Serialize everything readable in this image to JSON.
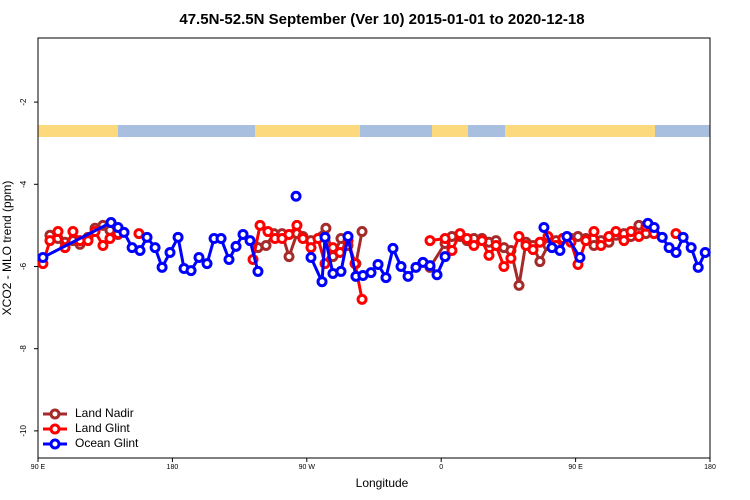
{
  "chart_data": {
    "type": "line",
    "title": "47.5N-52.5N September (Ver 10)   2015-01-01 to 2020-12-18",
    "x_label": "Longitude",
    "y_label": "XCO2 - MLO trend (ppm)",
    "xlim": [
      90,
      540
    ],
    "ylim": [
      -10.66,
      -0.44
    ],
    "xticks": [
      {
        "value": 90,
        "label": "90 E"
      },
      {
        "value": 180,
        "label": "180"
      },
      {
        "value": 270,
        "label": "90 W"
      },
      {
        "value": 360,
        "label": "0"
      },
      {
        "value": 450,
        "label": "90 E"
      },
      {
        "value": 540,
        "label": "180"
      }
    ],
    "yticks": [
      -2,
      -4,
      -6,
      -8,
      -10
    ],
    "legend": "bottom-left",
    "series": [
      {
        "name": "Land Nadir",
        "color": "#a52a2a",
        "x": [
          98.0,
          103.4,
          108.1,
          113.4,
          118.1,
          123.5,
          128.2,
          133.5,
          138.2,
          143.6,
          null,
          237.3,
          242.7,
          248.0,
          253.4,
          258.1,
          263.4,
          267.4,
          272.8,
          282.8,
          287.5,
          292.9,
          297.6,
          302.9,
          307.0,
          null,
          352.5,
          362.6,
          367.2,
          372.6,
          377.3,
          381.9,
          387.3,
          392.0,
          396.7,
          402.0,
          406.7,
          412.1,
          416.8,
          421.5,
          426.1,
          431.5,
          436.9,
          441.5,
          446.9,
          451.6,
          456.9,
          462.3,
          467.0,
          472.3,
          477.0,
          482.4,
          487.1,
          492.4,
          497.1
        ],
        "values": [
          -5.24,
          -5.32,
          -5.41,
          -5.37,
          -5.46,
          -5.29,
          -5.07,
          -5.0,
          -5.12,
          -5.22,
          null,
          -5.54,
          -5.49,
          -5.2,
          -5.2,
          -5.76,
          -5.2,
          -5.27,
          -5.37,
          -5.07,
          -5.76,
          -5.32,
          -5.49,
          -5.93,
          -5.15,
          null,
          -6.02,
          -5.44,
          -5.27,
          -5.27,
          -5.37,
          -5.32,
          -5.32,
          -5.41,
          -5.37,
          -5.54,
          -5.61,
          -6.46,
          -5.41,
          -5.49,
          -5.88,
          -5.49,
          -5.37,
          -5.32,
          -5.32,
          -5.27,
          -5.32,
          -5.49,
          -5.37,
          -5.41,
          -5.24,
          -5.2,
          -5.27,
          -5.0,
          -5.2
        ]
      },
      {
        "name": "Land Glint",
        "color": "#ff0000",
        "x": [
          93.3,
          98.0,
          103.4,
          108.1,
          113.4,
          118.1,
          123.5,
          128.2,
          133.5,
          138.2,
          143.6,
          null,
          157.6,
          null,
          234.0,
          238.7,
          244.0,
          248.7,
          253.4,
          258.1,
          263.4,
          267.4,
          272.8,
          277.5,
          282.2,
          287.5,
          292.2,
          297.6,
          302.3,
          307.0,
          null,
          352.5,
          362.6,
          367.2,
          372.6,
          377.3,
          381.9,
          387.3,
          392.0,
          396.7,
          402.0,
          406.7,
          412.1,
          416.8,
          421.5,
          426.1,
          431.5,
          436.9,
          441.5,
          446.9,
          451.6,
          456.9,
          462.3,
          467.0,
          472.3,
          477.0,
          482.4,
          487.1,
          492.4,
          497.1,
          502.5,
          null,
          517.2
        ],
        "values": [
          -5.93,
          -5.37,
          -5.15,
          -5.54,
          -5.15,
          -5.37,
          -5.37,
          -5.15,
          -5.49,
          -5.32,
          -5.2,
          null,
          -5.2,
          null,
          -5.83,
          -5.0,
          -5.15,
          -5.32,
          -5.32,
          -5.22,
          -5.0,
          -5.32,
          -5.54,
          -5.32,
          -5.93,
          -5.54,
          -5.66,
          -5.37,
          -5.93,
          -6.8,
          null,
          -5.37,
          -5.32,
          -5.61,
          -5.2,
          -5.32,
          -5.49,
          -5.37,
          -5.73,
          -5.49,
          -6.0,
          -5.8,
          -5.27,
          -5.49,
          -5.59,
          -5.41,
          -5.27,
          -5.49,
          -5.32,
          -5.41,
          -5.95,
          -5.37,
          -5.15,
          -5.49,
          -5.27,
          -5.15,
          -5.37,
          -5.15,
          -5.27,
          -5.02,
          -5.2,
          null,
          -5.2
        ]
      },
      {
        "name": "Ocean Glint",
        "color": "#0000ff",
        "x": [
          93.3,
          138.9,
          143.6,
          147.6,
          153.0,
          158.3,
          163.0,
          168.4,
          173.1,
          178.4,
          183.8,
          187.8,
          192.5,
          197.8,
          203.2,
          207.9,
          212.6,
          217.9,
          222.6,
          227.3,
          232.0,
          237.3,
          null,
          262.8,
          null,
          272.8,
          280.2,
          282.2,
          287.5,
          292.9,
          297.6,
          302.9,
          307.6,
          313.0,
          317.7,
          323.0,
          327.7,
          333.1,
          337.8,
          343.1,
          347.8,
          352.5,
          357.2,
          362.6,
          null,
          428.8,
          434.2,
          439.5,
          444.2,
          452.9,
          null,
          498.4,
          502.6,
          508.0,
          512.6,
          517.3,
          522.0,
          527.4,
          532.1,
          536.8
        ],
        "values": [
          -5.78,
          -4.93,
          -5.05,
          -5.17,
          -5.54,
          -5.61,
          -5.29,
          -5.54,
          -6.02,
          -5.66,
          -5.29,
          -6.05,
          -6.1,
          -5.78,
          -5.93,
          -5.32,
          -5.32,
          -5.83,
          -5.51,
          -5.22,
          -5.37,
          -6.12,
          null,
          -4.29,
          null,
          -5.78,
          -6.37,
          -5.29,
          -6.17,
          -6.12,
          -5.27,
          -6.24,
          -6.22,
          -6.15,
          -5.95,
          -6.27,
          -5.56,
          -6.0,
          -6.24,
          -6.02,
          -5.9,
          -5.98,
          -6.2,
          -5.76,
          null,
          -5.05,
          -5.54,
          -5.61,
          -5.27,
          -5.78,
          null,
          -4.95,
          -5.05,
          -5.29,
          -5.54,
          -5.66,
          -5.29,
          -5.54,
          -6.02,
          -5.66
        ]
      }
    ]
  }
}
